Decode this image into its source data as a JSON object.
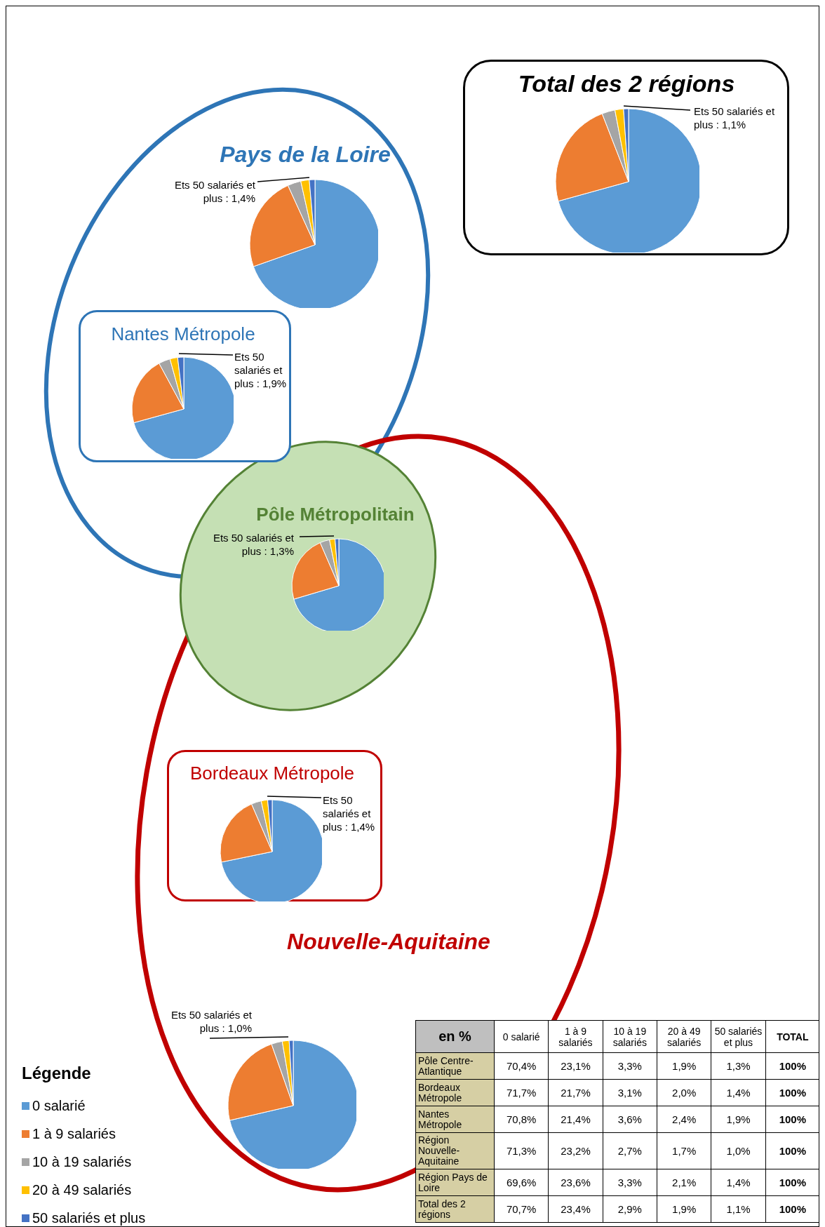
{
  "chart_data": [
    {
      "type": "pie",
      "title": "Pays de la Loire",
      "values": [
        69.6,
        23.6,
        3.3,
        2.1,
        1.4
      ],
      "colors": [
        "#5b9bd5",
        "#ed7d31",
        "#a5a5a5",
        "#ffc000",
        "#4472c4"
      ],
      "annotations": [
        "Ets 50 salariés et plus : 1,4%"
      ]
    },
    {
      "type": "pie",
      "title": "Total des 2 régions",
      "values": [
        70.7,
        23.4,
        2.9,
        1.9,
        1.1
      ],
      "colors": [
        "#5b9bd5",
        "#ed7d31",
        "#a5a5a5",
        "#ffc000",
        "#4472c4"
      ],
      "annotations": [
        "Ets 50 salariés et plus : 1,1%"
      ]
    },
    {
      "type": "pie",
      "title": "Nantes Métropole",
      "values": [
        70.8,
        21.4,
        3.6,
        2.4,
        1.9
      ],
      "colors": [
        "#5b9bd5",
        "#ed7d31",
        "#a5a5a5",
        "#ffc000",
        "#4472c4"
      ],
      "annotations": [
        "Ets 50 salariés et plus : 1,9%"
      ]
    },
    {
      "type": "pie",
      "title": "Pôle Métropolitain",
      "values": [
        70.4,
        23.1,
        3.3,
        1.9,
        1.3
      ],
      "colors": [
        "#5b9bd5",
        "#ed7d31",
        "#a5a5a5",
        "#ffc000",
        "#4472c4"
      ],
      "annotations": [
        "Ets 50 salariés et plus : 1,3%"
      ]
    },
    {
      "type": "pie",
      "title": "Bordeaux Métropole",
      "values": [
        71.7,
        21.7,
        3.1,
        2.0,
        1.4
      ],
      "colors": [
        "#5b9bd5",
        "#ed7d31",
        "#a5a5a5",
        "#ffc000",
        "#4472c4"
      ],
      "annotations": [
        "Ets 50 salariés et plus : 1,4%"
      ]
    },
    {
      "type": "pie",
      "title": "Nouvelle-Aquitaine",
      "categories": [
        "0 salarié",
        "1 à 9 salariés",
        "10 à 19 salariés",
        "20 à 49 salariés",
        "50 salariés et plus"
      ],
      "values": [
        71.3,
        23.2,
        2.7,
        1.7,
        1.0
      ],
      "colors": [
        "#5b9bd5",
        "#ed7d31",
        "#a5a5a5",
        "#ffc000",
        "#4472c4"
      ],
      "annotations": [
        "Ets 50 salariés et plus : 1,0%"
      ],
      "legend": "bottom left",
      "legend_title": "Légende"
    },
    {
      "type": "other",
      "title": "en %",
      "categories": [
        "0 salarié",
        "1 à 9 salariés",
        "10 à 19 salariés",
        "20 à 49 salariés",
        "50 salariés et plus",
        "TOTAL"
      ],
      "y_categories": [
        "Pôle Centre-Atlantique",
        "Bordeaux Métropole",
        "Nantes Métropole",
        "Région Nouvelle-Aquitaine",
        "Région Pays de Loire",
        "Total des 2 régions"
      ],
      "cell_labels": [
        [
          "70,4%",
          "23,1%",
          "3,3%",
          "1,9%",
          "1,3%",
          "100%"
        ],
        [
          "71,7%",
          "21,7%",
          "3,1%",
          "2,0%",
          "1,4%",
          "100%"
        ],
        [
          "70,8%",
          "21,4%",
          "3,6%",
          "2,4%",
          "1,9%",
          "100%"
        ],
        [
          "71,3%",
          "23,2%",
          "2,7%",
          "1,7%",
          "1,0%",
          "100%"
        ],
        [
          "69,6%",
          "23,6%",
          "3,3%",
          "2,1%",
          "1,4%",
          "100%"
        ],
        [
          "70,7%",
          "23,4%",
          "2,9%",
          "1,9%",
          "1,1%",
          "100%"
        ]
      ]
    }
  ]
}
